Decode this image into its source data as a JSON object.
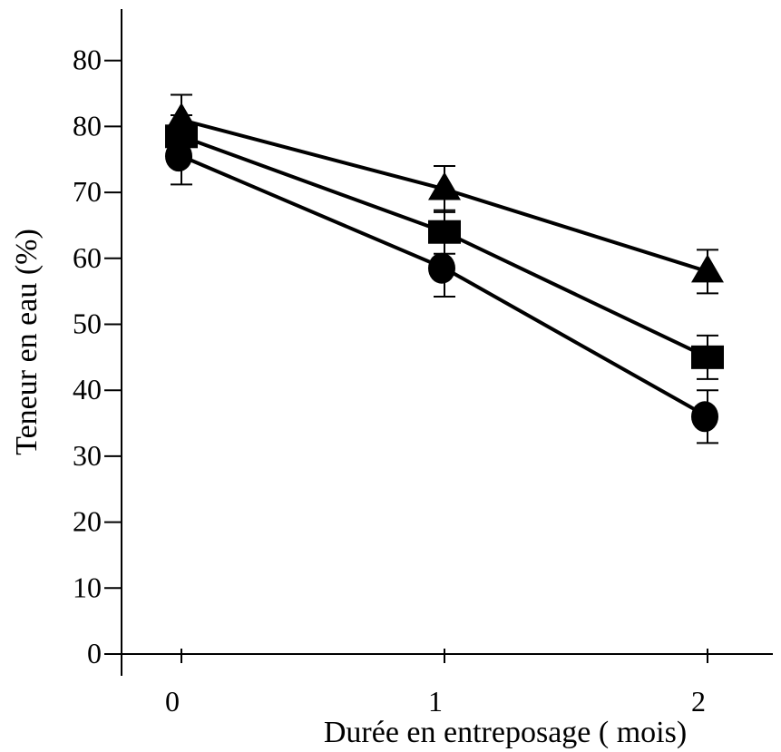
{
  "chart_data": {
    "type": "line",
    "title": "",
    "xlabel": "Durée en entreposage ( mois)",
    "ylabel": "Teneur en eau (%)",
    "x": [
      0,
      1,
      2
    ],
    "x_tick_labels": [
      "0",
      "1",
      "2"
    ],
    "y_tick_labels": [
      "0",
      "10",
      "20",
      "30",
      "40",
      "50",
      "60",
      "70",
      "80",
      "80"
    ],
    "ylim": [
      0,
      90
    ],
    "xlim": [
      -0.22,
      2.28
    ],
    "grid": false,
    "legend": "none",
    "series": [
      {
        "marker": "triangle",
        "values": [
          81,
          70.5,
          58
        ],
        "error": [
          3.8,
          3.5,
          3.3
        ]
      },
      {
        "marker": "square",
        "values": [
          78.5,
          64,
          45
        ],
        "error": [
          3.2,
          3.3,
          3.3
        ]
      },
      {
        "marker": "circle",
        "values": [
          75.5,
          58.5,
          36
        ],
        "error": [
          4.3,
          4.3,
          4
        ]
      }
    ]
  }
}
